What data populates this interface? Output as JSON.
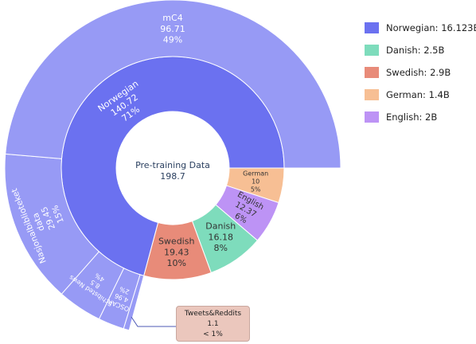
{
  "chart_data": {
    "type": "sunburst",
    "center": {
      "label": "Pre-training Data",
      "value": "198.7"
    },
    "inner": [
      {
        "name": "Norwegian",
        "value": "140.72",
        "percent": "71%",
        "raw": 140.72,
        "color": "#6b71f0",
        "text_color": "#ffffff"
      },
      {
        "name": "Swedish",
        "value": "19.43",
        "percent": "10%",
        "raw": 19.43,
        "color": "#e88b79",
        "text_color": "#333333"
      },
      {
        "name": "Danish",
        "value": "16.18",
        "percent": "8%",
        "raw": 16.18,
        "color": "#7edcbc",
        "text_color": "#333333"
      },
      {
        "name": "English",
        "value": "12.37",
        "percent": "6%",
        "raw": 12.37,
        "color": "#bd93f5",
        "text_color": "#333333"
      },
      {
        "name": "German",
        "value": "10",
        "percent": "5%",
        "raw": 10,
        "color": "#f7bf94",
        "text_color": "#333333"
      }
    ],
    "outer": [
      {
        "name": "mC4",
        "value": "96.71",
        "percent": "49%",
        "raw": 96.71,
        "color": "#979af5"
      },
      {
        "name": "Nasjonalbiblioteket data",
        "value": "29.45",
        "percent": "15%",
        "raw": 29.45,
        "color": "#979af5"
      },
      {
        "name": "Schibsted News",
        "value": "8.5",
        "percent": "4%",
        "raw": 8.5,
        "color": "#979af5"
      },
      {
        "name": "OSCAR",
        "value": "4.96",
        "percent": "2%",
        "raw": 4.96,
        "color": "#979af5"
      },
      {
        "name": "Tweets&Reddits",
        "value": "1.1",
        "percent": "< 1%",
        "raw": 1.1,
        "color": "#979af5"
      }
    ],
    "legend": [
      {
        "label": "Norwegian: 16.123B",
        "color": "#6b71f0"
      },
      {
        "label": "Danish: 2.5B",
        "color": "#7edcbc"
      },
      {
        "label": "Swedish: 2.9B",
        "color": "#e88b79"
      },
      {
        "label": "German: 1.4B",
        "color": "#f7bf94"
      },
      {
        "label": "English: 2B",
        "color": "#bd93f5"
      }
    ],
    "legend_position": "top-right"
  }
}
